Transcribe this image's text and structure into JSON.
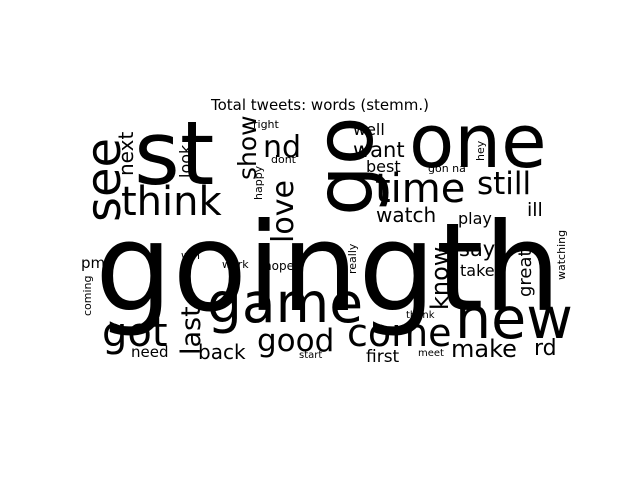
{
  "title": "Total tweets: words (stemm.)",
  "words": [
    {
      "text": "goingth"
    },
    {
      "text": "st"
    },
    {
      "text": "one"
    },
    {
      "text": "go"
    },
    {
      "text": "new"
    },
    {
      "text": "game"
    },
    {
      "text": "see"
    },
    {
      "text": "think"
    },
    {
      "text": "time"
    },
    {
      "text": "still"
    },
    {
      "text": "come"
    },
    {
      "text": "good"
    },
    {
      "text": "got"
    },
    {
      "text": "love"
    },
    {
      "text": "make"
    },
    {
      "text": "know"
    },
    {
      "text": "last"
    },
    {
      "text": "nd"
    },
    {
      "text": "show"
    },
    {
      "text": "watch"
    },
    {
      "text": "next"
    },
    {
      "text": "want"
    },
    {
      "text": "say"
    },
    {
      "text": "back"
    },
    {
      "text": "rd"
    },
    {
      "text": "great"
    },
    {
      "text": "first"
    },
    {
      "text": "ill"
    },
    {
      "text": "play"
    },
    {
      "text": "take"
    },
    {
      "text": "well"
    },
    {
      "text": "best"
    },
    {
      "text": "look"
    },
    {
      "text": "need"
    },
    {
      "text": "pm"
    },
    {
      "text": "hope"
    },
    {
      "text": "right"
    },
    {
      "text": "dont"
    },
    {
      "text": "happy"
    },
    {
      "text": "win"
    },
    {
      "text": "work"
    },
    {
      "text": "really"
    },
    {
      "text": "gon na"
    },
    {
      "text": "hey"
    },
    {
      "text": "watching"
    },
    {
      "text": "coming"
    },
    {
      "text": "start"
    },
    {
      "text": "meet"
    },
    {
      "text": "thank"
    }
  ]
}
